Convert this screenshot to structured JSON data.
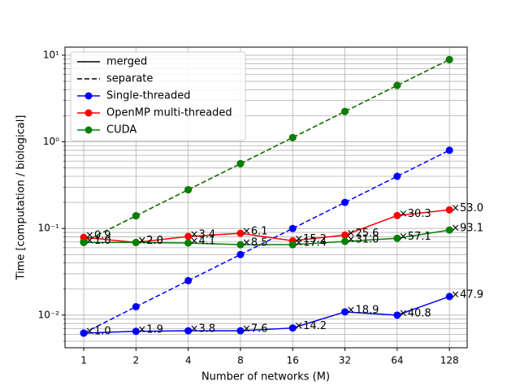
{
  "chart_data": {
    "type": "line",
    "xlabel": "Number of networks (M)",
    "ylabel": "Time [computation / biological]",
    "x": [
      1,
      2,
      4,
      8,
      16,
      32,
      64,
      128
    ],
    "xscale": "log2",
    "yscale": "log",
    "xlim": [
      0.78,
      162
    ],
    "ylim": [
      0.0042,
      12.4
    ],
    "xticks": [
      1,
      2,
      4,
      8,
      16,
      32,
      64,
      128
    ],
    "yticks": [
      {
        "value": 0.01,
        "label": "10⁻²"
      },
      {
        "value": 0.1,
        "label": "10⁻¹"
      },
      {
        "value": 1,
        "label": "10⁰"
      },
      {
        "value": 10,
        "label": "10¹"
      }
    ],
    "grid": true,
    "minor_grid": true,
    "legend": "upper left",
    "styles": [
      {
        "name": "merged",
        "linestyle": "solid"
      },
      {
        "name": "separate",
        "linestyle": "dashed"
      }
    ],
    "series": [
      {
        "name": "Single-threaded",
        "color": "#0000ff",
        "merged": [
          0.0062,
          0.0065,
          0.0066,
          0.0066,
          0.0071,
          0.0109,
          0.01,
          0.0164
        ],
        "separate": [
          0.0062,
          0.0125,
          0.025,
          0.05,
          0.1,
          0.2,
          0.4,
          0.8
        ],
        "annotations": [
          "×1.0",
          "×1.9",
          "×3.8",
          "×7.6",
          "×14.2",
          "×18.9",
          "×40.8",
          "×47.9"
        ]
      },
      {
        "name": "OpenMP multi-threaded",
        "color": "#ff0000",
        "merged": [
          0.079,
          0.069,
          0.081,
          0.088,
          0.072,
          0.084,
          0.141,
          0.164
        ],
        "separate": [
          0.07,
          0.14,
          0.28,
          0.56,
          1.12,
          2.24,
          4.48,
          8.9
        ],
        "annotations": [
          "×0.9",
          "×2.0",
          "×3.4",
          "×6.1",
          "×15.2",
          "×25.6",
          "×30.3",
          "×53.0"
        ]
      },
      {
        "name": "CUDA",
        "color": "#008000",
        "merged": [
          0.069,
          0.069,
          0.068,
          0.065,
          0.065,
          0.071,
          0.077,
          0.096
        ],
        "separate": [
          0.07,
          0.14,
          0.28,
          0.56,
          1.12,
          2.24,
          4.48,
          8.9
        ],
        "annotations": [
          "×1.0",
          "×2.0",
          "×4.1",
          "×8.5",
          "×17.4",
          "×31.0",
          "×57.1",
          "×93.1"
        ]
      }
    ]
  }
}
